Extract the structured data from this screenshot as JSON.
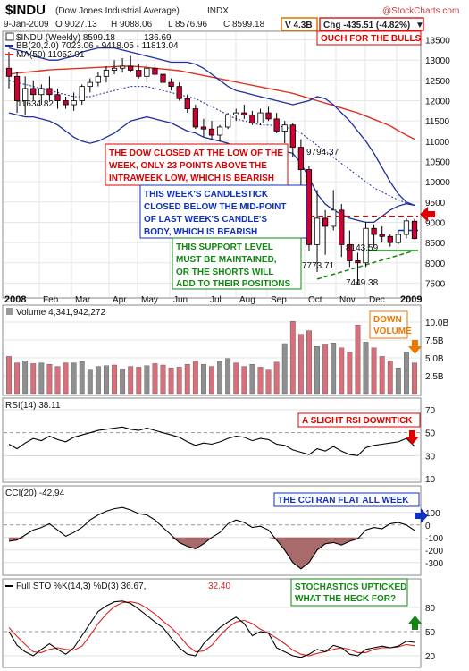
{
  "header": {
    "symbol": "$INDU",
    "name": "(Dow Jones Industrial Average)",
    "exchange": "INDX",
    "copyright": "@StockCharts.com",
    "date": "9-Jan-2009",
    "open": "O 9027.13",
    "high": "H 9088.06",
    "low": "L 8576.96",
    "close": "C 8599.18",
    "volume_box": "V 4.3B",
    "change_box": "Chg -435.51 (-4.82%)",
    "change_arrow": "▼"
  },
  "legends": {
    "price": "$INDU (Weekly) 8599.18",
    "price_chg": "136.69",
    "bb": "BB(20,2.0) 7023.06 - 9418.05 - 11813.04",
    "ma": "MA(50) 11052.01",
    "volume": "Volume 4,341,942,272",
    "rsi": "RSI(14) 38.11",
    "cci": "CCI(20) -42.94",
    "sto_a": "Full STO %K(14,3) %D(3) 36.67, ",
    "sto_b": "32.40"
  },
  "annotations": {
    "bulls": "OUCH FOR THE BULLS",
    "dow1": "THE DOW CLOSED AT THE LOW OF THE",
    "dow2": "WEEK, ONLY 23 POINTS ABOVE THE",
    "dow3": "INTRAWEEK LOW, WHICH IS BEARISH",
    "cs1": "THIS WEEK'S CANDLESTICK",
    "cs2": "CLOSED BELOW THE MID-POINT",
    "cs3": "OF LAST WEEK'S CANDLE'S",
    "cs4": "BODY, WHICH IS BEARISH",
    "sup1": "THIS SUPPORT LEVEL",
    "sup2": "MUST BE MAINTAINED,",
    "sup3": "OR THE SHORTS WILL",
    "sup4": "ADD TO THEIR POSITIONS",
    "down1": "DOWN",
    "down2": "VOLUME",
    "rsi": "A SLIGHT RSI DOWNTICK",
    "cci": "THE CCI RAN FLAT ALL WEEK",
    "sto1": "STOCHASTICS UPTICKED",
    "sto2": "WHAT THE HECK FOR?"
  },
  "price_labels": {
    "p1": "11634.82",
    "p2": "9794.37",
    "p3": "8143.59",
    "p4": "7773.71",
    "p5": "7449.38"
  },
  "x_axis": {
    "year_start": "2008",
    "year_end": "2009",
    "months": [
      "Feb",
      "Mar",
      "Apr",
      "May",
      "Jun",
      "Jul",
      "Aug",
      "Sep",
      "Oct",
      "Nov",
      "Dec"
    ]
  },
  "colors": {
    "up": "#ffffff",
    "down": "#cc0033",
    "bb": "#1f2f9f",
    "ma": "#e03020",
    "red_ann": "#dd0000",
    "blue_ann": "#1030c0",
    "green_ann": "#118811",
    "orange_ann": "#ee7700"
  },
  "chart_data": [
    {
      "type": "candlestick",
      "title": "$INDU (Weekly)",
      "ylim": [
        7200,
        13600
      ],
      "y_ticks": [
        7500,
        8000,
        8500,
        9000,
        9500,
        10000,
        10500,
        11000,
        11500,
        12000,
        12500,
        13000,
        13500
      ],
      "ohlc": [
        [
          12800,
          13200,
          12300,
          12600
        ],
        [
          12600,
          12700,
          11700,
          12000
        ],
        [
          12000,
          12600,
          11634.82,
          12300
        ],
        [
          12300,
          12500,
          12000,
          12150
        ],
        [
          12150,
          12400,
          11900,
          12300
        ],
        [
          12300,
          12600,
          12000,
          12150
        ],
        [
          12150,
          12300,
          11800,
          12000
        ],
        [
          12000,
          12100,
          11800,
          11900
        ],
        [
          11900,
          12200,
          11750,
          12000
        ],
        [
          12000,
          12400,
          11900,
          12350
        ],
        [
          12350,
          12550,
          12200,
          12450
        ],
        [
          12450,
          12700,
          12350,
          12600
        ],
        [
          12600,
          12850,
          12450,
          12750
        ],
        [
          12750,
          13000,
          12650,
          12800
        ],
        [
          12800,
          13050,
          12700,
          12850
        ],
        [
          12850,
          13100,
          12700,
          12750
        ],
        [
          12750,
          12900,
          12550,
          12600
        ],
        [
          12600,
          12900,
          12450,
          12800
        ],
        [
          12800,
          12900,
          12550,
          12650
        ],
        [
          12650,
          12700,
          12350,
          12450
        ],
        [
          12450,
          12550,
          12250,
          12350
        ],
        [
          12350,
          12450,
          12000,
          12050
        ],
        [
          12050,
          12150,
          11700,
          11800
        ],
        [
          11800,
          11900,
          11300,
          11350
        ],
        [
          11350,
          11550,
          11100,
          11300
        ],
        [
          11300,
          11500,
          11050,
          11150
        ],
        [
          11150,
          11400,
          11000,
          11350
        ],
        [
          11350,
          11700,
          11300,
          11650
        ],
        [
          11650,
          11800,
          11500,
          11700
        ],
        [
          11700,
          11900,
          11550,
          11650
        ],
        [
          11650,
          11750,
          11400,
          11450
        ],
        [
          11450,
          11800,
          11400,
          11700
        ],
        [
          11700,
          11850,
          11500,
          11550
        ],
        [
          11550,
          11700,
          11200,
          11250
        ],
        [
          11250,
          11500,
          10950,
          11400
        ],
        [
          11400,
          11450,
          10600,
          10850
        ],
        [
          10850,
          11050,
          9750,
          10300
        ],
        [
          10300,
          10400,
          8300,
          8450
        ],
        [
          8450,
          9800,
          7773.71,
          9100
        ],
        [
          9100,
          9300,
          8200,
          8900
        ],
        [
          8900,
          9794.37,
          8800,
          9300
        ],
        [
          9300,
          9450,
          8143.59,
          8450
        ],
        [
          8450,
          8800,
          7900,
          8050
        ],
        [
          8050,
          8250,
          7449.38,
          8000
        ],
        [
          8000,
          9000,
          7900,
          8850
        ],
        [
          8850,
          8950,
          8400,
          8700
        ],
        [
          8700,
          8900,
          8500,
          8650
        ],
        [
          8650,
          8700,
          8400,
          8500
        ],
        [
          8500,
          8800,
          8450,
          8700
        ],
        [
          8700,
          9100,
          8600,
          9035
        ],
        [
          9027.13,
          9088.06,
          8576.96,
          8599.18
        ]
      ],
      "bb_upper": [
        13300,
        13250,
        13200,
        13100,
        13050,
        13000,
        13000,
        13050,
        13100,
        13200,
        13250,
        13300,
        13300,
        13300,
        13250,
        13200,
        13150,
        13100,
        13050,
        13000,
        12950,
        12950,
        12950,
        12900,
        12800,
        12650,
        12500,
        12350,
        12250,
        12200,
        12150,
        12100,
        12050,
        12000,
        11950,
        11900,
        11950,
        12000,
        12100,
        12050,
        11900,
        11700,
        11500,
        11250,
        11000,
        10700,
        10350,
        10000,
        9700,
        9500,
        9418.05
      ],
      "bb_middle": [
        12500,
        12450,
        12400,
        12350,
        12300,
        12250,
        12200,
        12150,
        12100,
        12100,
        12100,
        12150,
        12200,
        12250,
        12300,
        12350,
        12350,
        12350,
        12300,
        12250,
        12200,
        12150,
        12100,
        12050,
        11950,
        11850,
        11750,
        11650,
        11550,
        11500,
        11450,
        11400,
        11400,
        11380,
        11350,
        11300,
        11200,
        11050,
        10900,
        10750,
        10600,
        10450,
        10300,
        10150,
        10000,
        9850,
        9750,
        9650,
        9550,
        9480,
        9418.05
      ],
      "bb_lower": [
        11700,
        11650,
        11600,
        11600,
        11550,
        11500,
        11400,
        11250,
        11100,
        11000,
        10950,
        11000,
        11100,
        11200,
        11350,
        11500,
        11550,
        11600,
        11550,
        11500,
        11450,
        11350,
        11250,
        11200,
        11100,
        11050,
        11000,
        10950,
        10850,
        10800,
        10750,
        10700,
        10750,
        10760,
        10750,
        10700,
        10450,
        10100,
        9700,
        9450,
        9300,
        9200,
        9100,
        9050,
        9000,
        9000,
        9150,
        9300,
        9400,
        9460,
        9418.05
      ],
      "ma50": [
        12650,
        12680,
        12700,
        12720,
        12740,
        12760,
        12770,
        12780,
        12790,
        12800,
        12810,
        12820,
        12830,
        12840,
        12850,
        12850,
        12840,
        12820,
        12800,
        12780,
        12760,
        12740,
        12700,
        12660,
        12620,
        12580,
        12540,
        12500,
        12460,
        12420,
        12380,
        12340,
        12300,
        12260,
        12220,
        12180,
        12120,
        12060,
        12000,
        11940,
        11880,
        11820,
        11760,
        11700,
        11620,
        11540,
        11460,
        11380,
        11260,
        11150,
        11052.01
      ],
      "support_line": [
        [
          38,
          7600
        ],
        [
          50,
          8300
        ]
      ],
      "resistance_level": 9150,
      "mid_level": 8800
    },
    {
      "type": "bar",
      "title": "Volume",
      "ylim": [
        0,
        11000000000
      ],
      "y_ticks": [
        "2.5B",
        "5.0B",
        "7.5B",
        "10.0B"
      ],
      "values": [
        5.2,
        4.3,
        4.6,
        4.2,
        4.3,
        4.1,
        3.8,
        4.3,
        4.3,
        4.5,
        3.3,
        3.8,
        3.9,
        4.0,
        3.4,
        3.8,
        3.7,
        3.9,
        4.2,
        4.0,
        3.6,
        3.7,
        4.1,
        4.6,
        4.1,
        3.8,
        4.5,
        4.9,
        4.3,
        3.8,
        4.1,
        3.7,
        3.3,
        4.4,
        7.0,
        10.1,
        8.3,
        8.8,
        6.6,
        6.9,
        7.1,
        6.4,
        5.8,
        9.6,
        7.2,
        6.4,
        5.2,
        4.6,
        3.6,
        5.8,
        4.3
      ],
      "down": [
        1,
        1,
        0,
        1,
        0,
        1,
        1,
        1,
        0,
        0,
        0,
        0,
        0,
        1,
        0,
        1,
        1,
        0,
        1,
        1,
        1,
        1,
        1,
        1,
        0,
        1,
        0,
        0,
        1,
        1,
        0,
        1,
        1,
        1,
        0,
        1,
        1,
        1,
        0,
        1,
        0,
        1,
        1,
        1,
        0,
        1,
        1,
        1,
        0,
        0,
        1
      ]
    },
    {
      "type": "line",
      "title": "RSI(14)",
      "ylim": [
        10,
        70
      ],
      "y_ticks": [
        10,
        30,
        50,
        70
      ],
      "values": [
        40,
        36,
        41,
        45,
        43,
        47,
        44,
        42,
        46,
        48,
        50,
        52,
        53,
        54,
        55,
        53,
        52,
        54,
        52,
        50,
        48,
        46,
        42,
        39,
        41,
        40,
        42,
        45,
        47,
        46,
        43,
        45,
        44,
        40,
        39,
        35,
        33,
        31,
        36,
        34,
        38,
        34,
        31,
        30,
        37,
        39,
        40,
        41,
        42,
        45,
        38.11
      ]
    },
    {
      "type": "area",
      "title": "CCI(20)",
      "ylim": [
        -380,
        220
      ],
      "y_ticks": [
        -300,
        -200,
        -100,
        0,
        100
      ],
      "values": [
        -130,
        -120,
        -80,
        -40,
        -20,
        10,
        -40,
        -90,
        -60,
        -20,
        40,
        80,
        110,
        130,
        140,
        120,
        90,
        80,
        40,
        -20,
        -80,
        -140,
        -170,
        -190,
        -150,
        -100,
        -60,
        10,
        40,
        20,
        -20,
        -10,
        -40,
        -120,
        -200,
        -300,
        -350,
        -300,
        -200,
        -150,
        -140,
        -160,
        -130,
        -110,
        -40,
        -20,
        -30,
        10,
        20,
        0,
        -42.94
      ]
    },
    {
      "type": "line",
      "title": "Full STO %K(14,3) %D(3)",
      "ylim": [
        10,
        100
      ],
      "y_ticks": [
        20,
        50,
        80
      ],
      "series": [
        {
          "name": "%K(14,3)",
          "values": [
            50,
            33,
            25,
            20,
            28,
            35,
            28,
            22,
            30,
            45,
            60,
            75,
            82,
            87,
            88,
            85,
            78,
            70,
            62,
            55,
            42,
            30,
            22,
            20,
            35,
            45,
            55,
            62,
            68,
            60,
            45,
            50,
            48,
            30,
            25,
            20,
            18,
            22,
            28,
            25,
            33,
            30,
            22,
            20,
            28,
            30,
            32,
            30,
            32,
            38,
            36.67
          ]
        },
        {
          "name": "%D(3)",
          "values": [
            55,
            44,
            34,
            25,
            24,
            28,
            30,
            28,
            27,
            32,
            45,
            60,
            72,
            81,
            86,
            87,
            85,
            79,
            72,
            63,
            55,
            45,
            33,
            25,
            26,
            33,
            45,
            55,
            62,
            64,
            60,
            53,
            48,
            42,
            35,
            27,
            22,
            20,
            23,
            25,
            28,
            30,
            28,
            24,
            24,
            28,
            30,
            30,
            31,
            34,
            32.4
          ]
        }
      ]
    }
  ]
}
